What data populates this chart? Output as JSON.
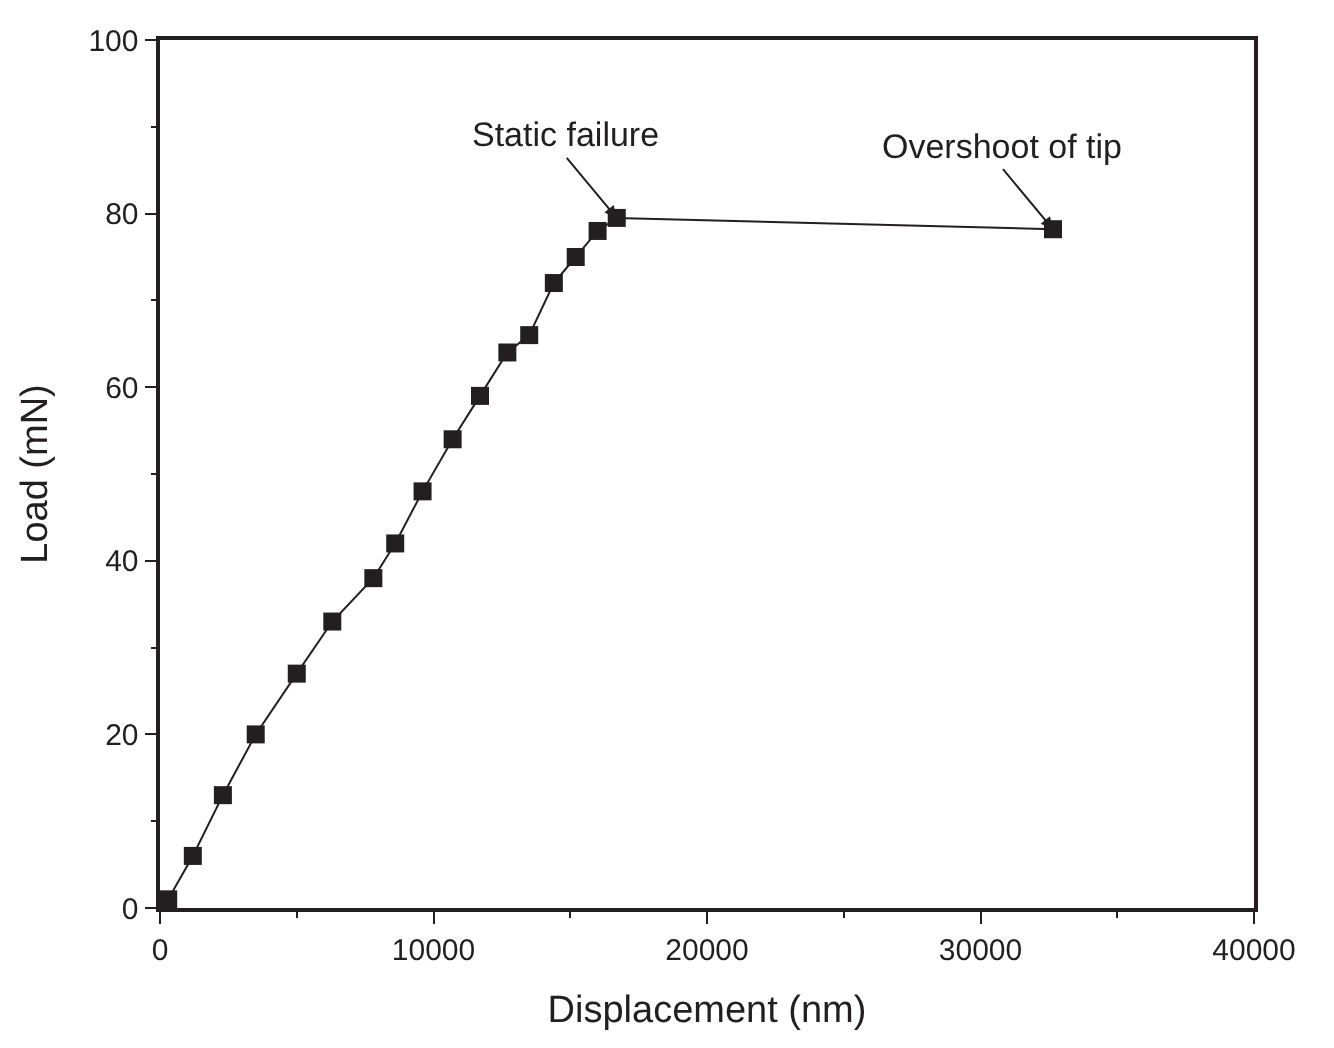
{
  "chart_data": {
    "type": "line",
    "xlabel": "Displacement (nm)",
    "ylabel": "Load (mN)",
    "xlim": [
      0,
      40000
    ],
    "xticks": [
      0,
      10000,
      20000,
      30000,
      40000
    ],
    "ylim": [
      0,
      100
    ],
    "yticks": [
      0,
      20,
      40,
      60,
      80,
      100
    ],
    "marker": "square",
    "series": [
      {
        "color": "#231f20",
        "x": [
          300,
          1200,
          2300,
          3500,
          5000,
          6300,
          7800,
          8600,
          9600,
          10700,
          11700,
          12700,
          13500,
          14400,
          15200,
          16000,
          16700,
          32650
        ],
        "values": [
          1,
          6,
          13,
          20,
          27,
          33,
          38,
          42,
          48,
          54,
          59,
          64,
          66,
          72,
          75,
          78,
          79.5,
          78.2
        ]
      }
    ],
    "annotations": [
      {
        "text": "Static failure",
        "x": 16700,
        "y": 79.5
      },
      {
        "text": "Overshoot of tip",
        "x": 32650,
        "y": 78.2
      }
    ]
  }
}
